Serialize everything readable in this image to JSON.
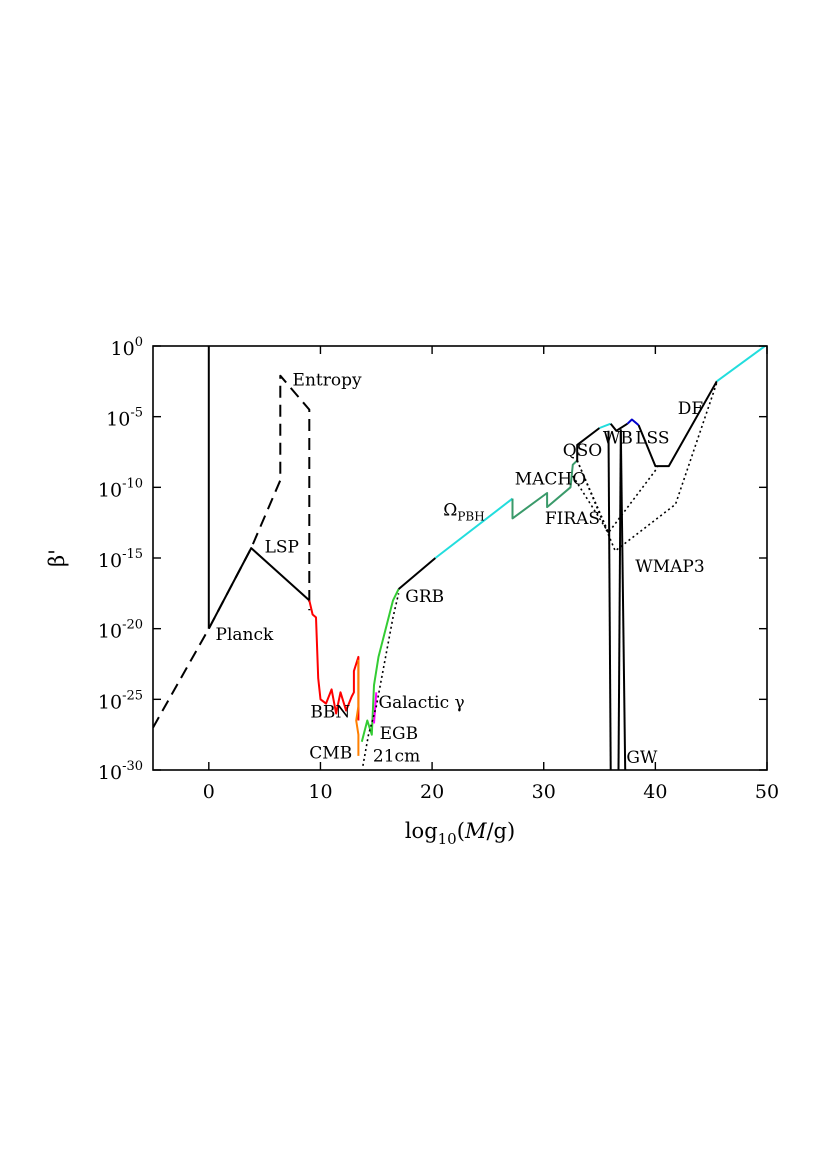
{
  "chart_data": {
    "type": "line",
    "xlabel": {
      "main": "log",
      "sub": "10",
      "rest": "(",
      "italic": "M",
      "tail": "/g)"
    },
    "ylabel": "β'",
    "xlim": [
      -5,
      50
    ],
    "ylim_log10": [
      -30,
      0
    ],
    "x_ticks": [
      "0",
      "10",
      "20",
      "30",
      "40",
      "50"
    ],
    "x_tick_values": [
      0,
      10,
      20,
      30,
      40,
      50
    ],
    "y_ticks": [
      {
        "base": "10",
        "exp": "0",
        "value": 0
      },
      {
        "base": "10",
        "exp": "-5",
        "value": -5
      },
      {
        "base": "10",
        "exp": "-10",
        "value": -10
      },
      {
        "base": "10",
        "exp": "-15",
        "value": -15
      },
      {
        "base": "10",
        "exp": "-20",
        "value": -20
      },
      {
        "base": "10",
        "exp": "-25",
        "value": -25
      },
      {
        "base": "10",
        "exp": "-30",
        "value": -30
      }
    ],
    "grid": false,
    "y_scale": "log",
    "annotations": [
      {
        "text": "Entropy",
        "x": 7.5,
        "y": -2.8
      },
      {
        "text": "LSP",
        "x": 5.0,
        "y": -14.6
      },
      {
        "text": "Planck",
        "x": 0.6,
        "y": -20.8
      },
      {
        "text": "BBN",
        "x": 9.1,
        "y": -26.3
      },
      {
        "text": "CMB",
        "x": 9.0,
        "y": -29.2
      },
      {
        "text": "Galactic γ",
        "x": 15.2,
        "y": -25.6
      },
      {
        "text": "EGB",
        "x": 15.3,
        "y": -27.8
      },
      {
        "text": "21cm",
        "x": 14.7,
        "y": -29.4
      },
      {
        "text": "GRB",
        "x": 17.6,
        "y": -18.1
      },
      {
        "text": "Ω",
        "sub": "PBH",
        "x": 21.0,
        "y": -12.0
      },
      {
        "text": "MACHO",
        "x": 27.4,
        "y": -9.8
      },
      {
        "text": "FIRAS",
        "x": 30.1,
        "y": -12.6
      },
      {
        "text": "QSO",
        "x": 31.7,
        "y": -7.8
      },
      {
        "text": "WB",
        "x": 35.3,
        "y": -6.9
      },
      {
        "text": "LSS",
        "x": 38.2,
        "y": -6.9
      },
      {
        "text": "DF",
        "x": 42.0,
        "y": -4.8
      },
      {
        "text": "WMAP3",
        "x": 38.2,
        "y": -16.0
      },
      {
        "text": "GW",
        "x": 37.4,
        "y": -29.5
      }
    ],
    "series": [
      {
        "style": "solid",
        "color": "#000000",
        "points": [
          [
            0,
            0
          ],
          [
            0,
            -20
          ]
        ]
      },
      {
        "style": "dashed",
        "color": "#000000",
        "points": [
          [
            -5,
            -27
          ],
          [
            0,
            -20
          ],
          [
            3.8,
            -14.3
          ],
          [
            6.4,
            -9.5
          ],
          [
            6.4,
            -2.1
          ],
          [
            9.0,
            -4.5
          ],
          [
            9.0,
            -18.7
          ]
        ]
      },
      {
        "style": "solid",
        "color": "#000000",
        "points": [
          [
            0,
            -20
          ],
          [
            3.8,
            -14.3
          ],
          [
            9.0,
            -18.0
          ]
        ]
      },
      {
        "style": "solid",
        "color": "#ff0000",
        "points": [
          [
            9.0,
            -18.0
          ],
          [
            9.3,
            -19.0
          ],
          [
            9.6,
            -19.2
          ],
          [
            9.8,
            -23.5
          ],
          [
            10.0,
            -25.0
          ],
          [
            10.5,
            -25.3
          ],
          [
            11.0,
            -24.3
          ],
          [
            11.4,
            -26.0
          ],
          [
            11.8,
            -24.5
          ],
          [
            12.3,
            -25.8
          ],
          [
            12.8,
            -24.8
          ],
          [
            13.0,
            -24.5
          ],
          [
            13.0,
            -23.0
          ],
          [
            13.4,
            -22.0
          ],
          [
            13.4,
            -26.5
          ]
        ]
      },
      {
        "style": "solid",
        "color": "#ff7f00",
        "points": [
          [
            13.4,
            -29.0
          ],
          [
            13.4,
            -27.5
          ],
          [
            13.2,
            -26.5
          ],
          [
            13.4,
            -25.5
          ],
          [
            13.4,
            -22.2
          ]
        ]
      },
      {
        "style": "solid",
        "color": "#33cc33",
        "points": [
          [
            13.7,
            -28.0
          ],
          [
            14.2,
            -26.5
          ],
          [
            14.6,
            -27.5
          ],
          [
            14.8,
            -24.0
          ],
          [
            15.2,
            -22.0
          ],
          [
            16.5,
            -18.0
          ],
          [
            17.0,
            -17.2
          ]
        ]
      },
      {
        "style": "solid",
        "color": "#ff00ff",
        "points": [
          [
            14.8,
            -26.7
          ],
          [
            15.0,
            -24.5
          ]
        ]
      },
      {
        "style": "dotted",
        "color": "#000000",
        "points": [
          [
            13.8,
            -29.7
          ],
          [
            14.3,
            -27.5
          ],
          [
            15.0,
            -25.5
          ],
          [
            16.5,
            -19.2
          ],
          [
            17.0,
            -17.5
          ]
        ]
      },
      {
        "style": "solid",
        "color": "#000000",
        "points": [
          [
            17.0,
            -17.2
          ],
          [
            20.3,
            -15.0
          ]
        ]
      },
      {
        "style": "solid",
        "color": "#22dddd",
        "points": [
          [
            20.3,
            -15.0
          ],
          [
            27.2,
            -10.8
          ]
        ]
      },
      {
        "style": "solid",
        "color": "#3a9a6a",
        "points": [
          [
            27.2,
            -10.8
          ],
          [
            27.2,
            -12.2
          ],
          [
            30.3,
            -10.4
          ],
          [
            30.3,
            -11.4
          ],
          [
            32.4,
            -10.0
          ],
          [
            32.6,
            -8.4
          ],
          [
            33.0,
            -8.1
          ]
        ]
      },
      {
        "style": "solid",
        "color": "#000000",
        "points": [
          [
            33.0,
            -8.2
          ],
          [
            33.0,
            -7.0
          ],
          [
            35.0,
            -5.8
          ]
        ]
      },
      {
        "style": "solid",
        "color": "#22dddd",
        "points": [
          [
            35.0,
            -5.8
          ],
          [
            36.0,
            -5.5
          ]
        ]
      },
      {
        "style": "solid",
        "color": "#000000",
        "points": [
          [
            36.0,
            -5.5
          ],
          [
            36.5,
            -6.0
          ],
          [
            37.5,
            -5.5
          ]
        ]
      },
      {
        "style": "solid",
        "color": "#0000cc",
        "points": [
          [
            37.5,
            -5.5
          ],
          [
            37.9,
            -5.2
          ],
          [
            38.5,
            -5.6
          ]
        ]
      },
      {
        "style": "solid",
        "color": "#000000",
        "points": [
          [
            38.5,
            -5.6
          ],
          [
            40.0,
            -8.5
          ],
          [
            41.2,
            -8.5
          ],
          [
            45.5,
            -2.5
          ]
        ]
      },
      {
        "style": "solid",
        "color": "#22dddd",
        "points": [
          [
            45.5,
            -2.5
          ],
          [
            50,
            0.1
          ]
        ]
      },
      {
        "style": "solid",
        "color": "#000000",
        "points": [
          [
            35.8,
            -6.0
          ],
          [
            36.0,
            -30
          ]
        ]
      },
      {
        "style": "solid",
        "color": "#000000",
        "points": [
          [
            36.9,
            -5.9
          ],
          [
            37.3,
            -30
          ]
        ]
      },
      {
        "style": "solid",
        "color": "#000000",
        "points": [
          [
            36.7,
            -30
          ],
          [
            36.9,
            -6.0
          ]
        ]
      },
      {
        "style": "dotted",
        "color": "#000000",
        "points": [
          [
            33.0,
            -8.1
          ],
          [
            35.8,
            -13.2
          ],
          [
            40.2,
            -8.6
          ]
        ]
      },
      {
        "style": "dotted",
        "color": "#000000",
        "points": [
          [
            33.0,
            -8.1
          ],
          [
            36.4,
            -14.5
          ],
          [
            41.8,
            -11.2
          ],
          [
            45.5,
            -2.6
          ]
        ]
      },
      {
        "style": "dotted",
        "color": "#000000",
        "points": [
          [
            32.6,
            -9.2
          ],
          [
            35.8,
            -13.2
          ]
        ]
      }
    ]
  }
}
